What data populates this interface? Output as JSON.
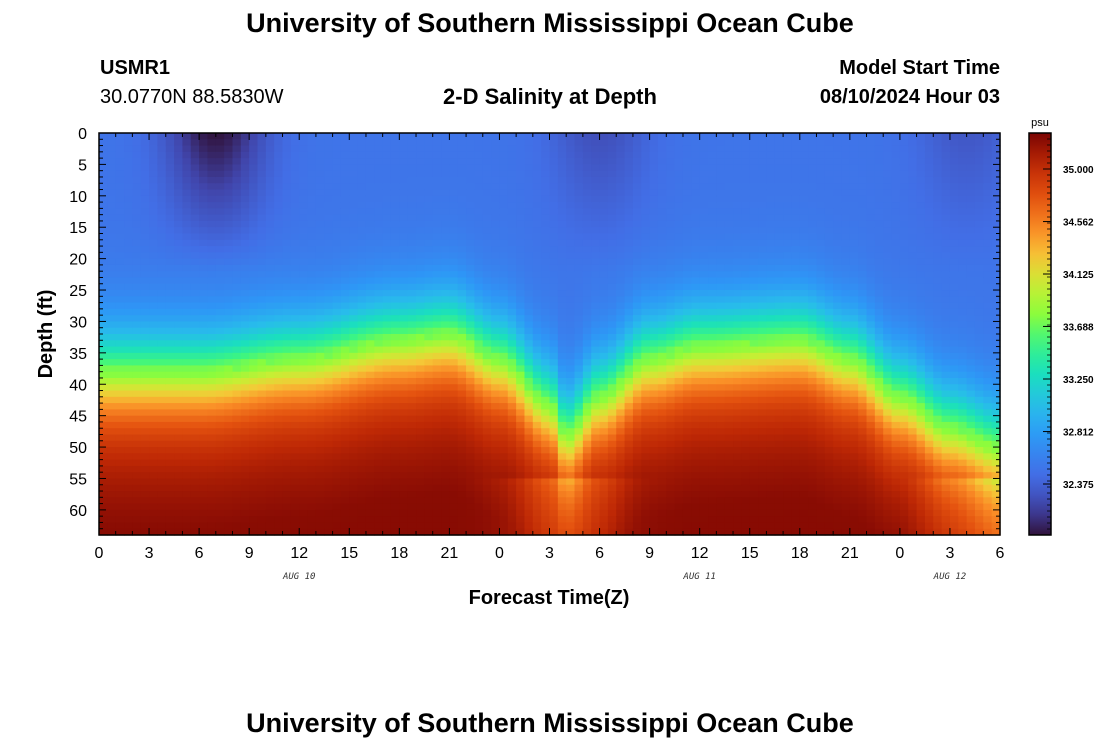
{
  "header": {
    "title": "University of Southern Mississippi Ocean Cube",
    "station": "USMR1",
    "coords": "30.0770N  88.5830W",
    "plot_title": "2-D Salinity at Depth",
    "model_start_label": "Model Start Time",
    "model_start_value": "08/10/2024 Hour 03"
  },
  "footer": {
    "title": "University of Southern Mississippi Ocean Cube"
  },
  "chart_data": {
    "type": "heatmap",
    "title": "2-D Salinity at Depth",
    "xlabel": "Forecast Time(Z)",
    "ylabel": "Depth (ft)",
    "x_tick_labels": [
      "0",
      "3",
      "6",
      "9",
      "12",
      "15",
      "18",
      "21",
      "0",
      "3",
      "6",
      "9",
      "12",
      "15",
      "18",
      "21",
      "0",
      "3",
      "6"
    ],
    "x_range_hours": [
      0,
      54
    ],
    "date_labels": [
      {
        "label": "AUG 10",
        "hour": 12
      },
      {
        "label": "AUG 11",
        "hour": 36
      },
      {
        "label": "AUG 12",
        "hour": 51
      }
    ],
    "y_ticks": [
      0,
      5,
      10,
      15,
      20,
      25,
      30,
      35,
      40,
      45,
      50,
      55,
      60
    ],
    "y_range": [
      0,
      64
    ],
    "y_inverted": true,
    "colorbar": {
      "unit": "psu",
      "tick_labels": [
        "35.000",
        "34.562",
        "34.125",
        "33.688",
        "33.250",
        "32.812",
        "32.375"
      ],
      "ticks": [
        35.0,
        34.562,
        34.125,
        33.688,
        33.25,
        32.812,
        32.375
      ],
      "range": [
        31.95,
        35.3
      ]
    },
    "field_summary": {
      "top_layer_psu": 32.5,
      "bottom_layer_psu": 35.1,
      "halocline_depth_ft": [
        {
          "hour": 0,
          "depth": 38
        },
        {
          "hour": 6,
          "depth": 38
        },
        {
          "hour": 12,
          "depth": 36
        },
        {
          "hour": 18,
          "depth": 33
        },
        {
          "hour": 21,
          "depth": 32
        },
        {
          "hour": 24,
          "depth": 36
        },
        {
          "hour": 27,
          "depth": 43
        },
        {
          "hour": 28,
          "depth": 48
        },
        {
          "hour": 30,
          "depth": 42
        },
        {
          "hour": 33,
          "depth": 36
        },
        {
          "hour": 36,
          "depth": 34
        },
        {
          "hour": 42,
          "depth": 33
        },
        {
          "hour": 45,
          "depth": 36
        },
        {
          "hour": 48,
          "depth": 42
        },
        {
          "hour": 51,
          "depth": 47
        },
        {
          "hour": 54,
          "depth": 50
        }
      ]
    }
  }
}
